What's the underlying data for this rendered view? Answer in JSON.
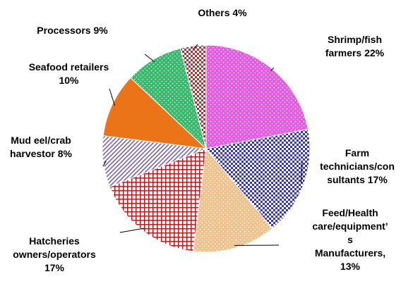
{
  "chart_data": {
    "type": "pie",
    "categories": [
      "Shrimp/fish farmers",
      "Farm technicians/consultants",
      "Feed/Health care/equipment’s Manufacturers,",
      "Hatcheries owners/operators",
      "Mud eel/crab harvestor",
      "Seafood retailers",
      "Processors",
      "Others"
    ],
    "values": [
      22,
      17,
      13,
      17,
      8,
      10,
      9,
      4
    ],
    "value_labels": [
      "22%",
      "17%",
      "13%",
      "17%",
      "8%",
      "10%",
      "9%",
      "4%"
    ],
    "colors": [
      "#e23ee0",
      "#3434c8",
      "#eeb878",
      "#c01818",
      "#7a66a8",
      "#ec7418",
      "#10b050",
      "#a03838"
    ],
    "patterns": [
      "dots",
      "checker",
      "dots",
      "grid",
      "diagonal",
      "solid",
      "dots",
      "checker"
    ]
  }
}
